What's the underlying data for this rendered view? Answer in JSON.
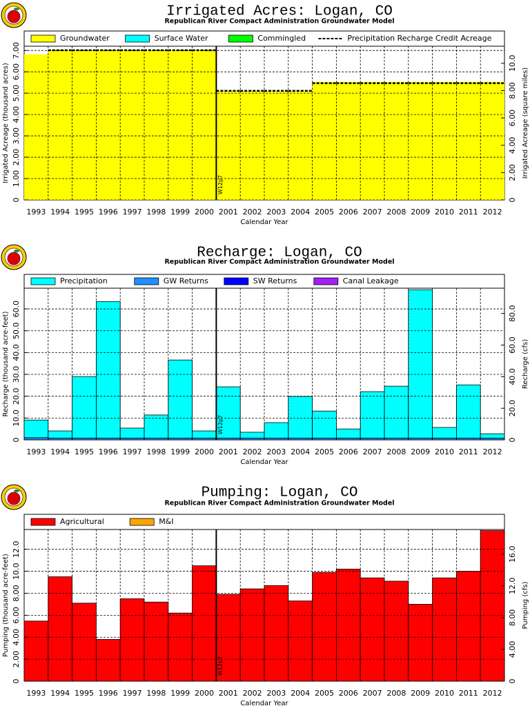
{
  "chart_data": [
    {
      "type": "bar",
      "title": "Irrigated Acres: Logan, CO",
      "subtitle": "Republican River Compact Administration Groundwater Model",
      "x_label": "Calendar Year",
      "y_label": "Irrigated Acreage (thousand acres)",
      "y2_label": "Irrigated Acreage (square miles)",
      "annotation": "W12p7",
      "categories": [
        "1993",
        "1994",
        "1995",
        "1996",
        "1997",
        "1998",
        "1999",
        "2000",
        "2001",
        "2002",
        "2003",
        "2004",
        "2005",
        "2006",
        "2007",
        "2008",
        "2009",
        "2010",
        "2011",
        "2012"
      ],
      "series": [
        {
          "name": "Groundwater",
          "color": "#ffff00",
          "values": [
            6.82,
            7.01,
            7.01,
            7.01,
            7.01,
            7.01,
            7.01,
            7.01,
            5.11,
            5.11,
            5.11,
            5.11,
            5.53,
            5.53,
            5.53,
            5.53,
            5.53,
            5.53,
            5.53,
            5.53
          ]
        },
        {
          "name": "Surface Water",
          "color": "#00ffff",
          "values": [
            0,
            0,
            0,
            0,
            0,
            0,
            0,
            0,
            0,
            0,
            0,
            0,
            0,
            0,
            0,
            0,
            0,
            0,
            0,
            0
          ]
        },
        {
          "name": "Commingled",
          "color": "#00ff00",
          "values": [
            0,
            0,
            0,
            0,
            0,
            0,
            0,
            0,
            0,
            0,
            0,
            0,
            0,
            0,
            0,
            0,
            0,
            0,
            0,
            0
          ]
        },
        {
          "name": "Precipitation Recharge Credit Acreage",
          "style": "dashed",
          "color": "#000000",
          "values": [
            null,
            7.01,
            7.01,
            7.01,
            7.01,
            7.01,
            7.01,
            7.01,
            5.11,
            5.11,
            5.11,
            5.11,
            5.47,
            5.47,
            5.47,
            5.47,
            5.47,
            5.47,
            5.47,
            5.47
          ]
        }
      ],
      "ylim": [
        0,
        7.2
      ],
      "yticks": [
        0,
        {
          "value": 1,
          "label": "1.00"
        },
        {
          "value": 2,
          "label": "2.00"
        },
        {
          "value": 3,
          "label": "3.00"
        },
        {
          "value": 4,
          "label": "4.00"
        },
        {
          "value": 5,
          "label": "5.00"
        },
        {
          "value": 6,
          "label": "6.00"
        },
        {
          "value": 7,
          "label": "7.00"
        }
      ],
      "y2lim": [
        0,
        11.25
      ],
      "y2ticks": [
        0,
        {
          "value": 2,
          "label": "2.00"
        },
        {
          "value": 4,
          "label": "4.00"
        },
        {
          "value": 6,
          "label": "6.00"
        },
        {
          "value": 8,
          "label": "8.00"
        },
        {
          "value": 10,
          "label": "10.0"
        }
      ],
      "grid": true,
      "outline": false
    },
    {
      "type": "bar",
      "title": "Recharge: Logan, CO",
      "subtitle": "Republican River Compact Administration Groundwater Model",
      "x_label": "Calendar Year",
      "y_label": "Recharge (thousand acre-feet)",
      "y2_label": "Recharge (cfs)",
      "annotation": "W12p7",
      "categories": [
        "1993",
        "1994",
        "1995",
        "1996",
        "1997",
        "1998",
        "1999",
        "2000",
        "2001",
        "2002",
        "2003",
        "2004",
        "2005",
        "2006",
        "2007",
        "2008",
        "2009",
        "2010",
        "2011",
        "2012"
      ],
      "series": [
        {
          "name": "Precipitation",
          "color": "#00ffff",
          "values": [
            8.1,
            3.3,
            28.2,
            62.6,
            4.6,
            10.6,
            35.8,
            3.3,
            23.5,
            2.7,
            7.1,
            19.1,
            12.4,
            4.2,
            21.3,
            23.8,
            68.0,
            4.9,
            24.4,
            2.0
          ]
        },
        {
          "name": "GW Returns",
          "color": "#1e90ff",
          "values": [
            1.0,
            0.8,
            0.8,
            0.8,
            0.8,
            0.8,
            0.8,
            0.8,
            0.8,
            0.8,
            0.8,
            0.8,
            0.8,
            0.8,
            0.8,
            0.8,
            0.8,
            0.8,
            0.8,
            0.8
          ]
        },
        {
          "name": "SW Returns",
          "color": "#0000ff",
          "values": [
            0,
            0,
            0,
            0,
            0,
            0,
            0,
            0,
            0,
            0,
            0,
            0,
            0,
            0,
            0,
            0,
            0,
            0,
            0,
            0
          ]
        },
        {
          "name": "Canal Leakage",
          "color": "#a020f0",
          "values": [
            0,
            0,
            0,
            0,
            0,
            0,
            0,
            0,
            0,
            0,
            0,
            0,
            0,
            0,
            0,
            0,
            0,
            0,
            0,
            0
          ]
        }
      ],
      "ylim": [
        0,
        69.5
      ],
      "yticks": [
        0,
        {
          "value": 10,
          "label": "10.0"
        },
        {
          "value": 20,
          "label": "20.0"
        },
        {
          "value": 30,
          "label": "30.0"
        },
        {
          "value": 40,
          "label": "40.0"
        },
        {
          "value": 50,
          "label": "50.0"
        },
        {
          "value": 60,
          "label": "60.0"
        }
      ],
      "y2lim": [
        0,
        96
      ],
      "y2ticks": [
        0,
        {
          "value": 20,
          "label": "20.0"
        },
        {
          "value": 40,
          "label": "40.0"
        },
        {
          "value": 60,
          "label": "60.0"
        },
        {
          "value": 80,
          "label": "80.0"
        }
      ],
      "grid": true,
      "outline": true
    },
    {
      "type": "bar",
      "title": "Pumping: Logan, CO",
      "subtitle": "Republican River Compact Administration Groundwater Model",
      "x_label": "Calendar Year",
      "y_label": "Pumping (thousand acre-feet)",
      "y2_label": "Pumping (cfs)",
      "annotation": "W12p7",
      "categories": [
        "1993",
        "1994",
        "1995",
        "1996",
        "1997",
        "1998",
        "1999",
        "2000",
        "2001",
        "2002",
        "2003",
        "2004",
        "2005",
        "2006",
        "2007",
        "2008",
        "2009",
        "2010",
        "2011",
        "2012"
      ],
      "series": [
        {
          "name": "Agricultural",
          "color": "#ff0000",
          "values": [
            5.47,
            9.5,
            7.1,
            3.8,
            7.5,
            7.2,
            6.2,
            10.5,
            7.9,
            8.4,
            8.7,
            7.3,
            9.9,
            10.2,
            9.4,
            9.1,
            7.0,
            9.4,
            10.0,
            13.7
          ]
        },
        {
          "name": "M&I",
          "color": "#ffa500",
          "values": [
            0,
            0,
            0,
            0,
            0,
            0,
            0,
            0,
            0,
            0,
            0,
            0,
            0,
            0,
            0,
            0,
            0,
            0,
            0,
            0
          ]
        }
      ],
      "ylim": [
        0,
        13.8
      ],
      "yticks": [
        0,
        {
          "value": 2,
          "label": "2.00"
        },
        {
          "value": 4,
          "label": "4.00"
        },
        {
          "value": 6,
          "label": "6.00"
        },
        {
          "value": 8,
          "label": "8.00"
        },
        {
          "value": 10,
          "label": "10.0"
        },
        {
          "value": 12,
          "label": "12.0"
        }
      ],
      "y2lim": [
        0,
        19.1
      ],
      "y2ticks": [
        0,
        {
          "value": 4,
          "label": "4.00"
        },
        {
          "value": 8,
          "label": "8.00"
        },
        {
          "value": 12,
          "label": "12.0"
        },
        {
          "value": 16,
          "label": "16.0"
        }
      ],
      "grid": true,
      "outline": true
    }
  ]
}
